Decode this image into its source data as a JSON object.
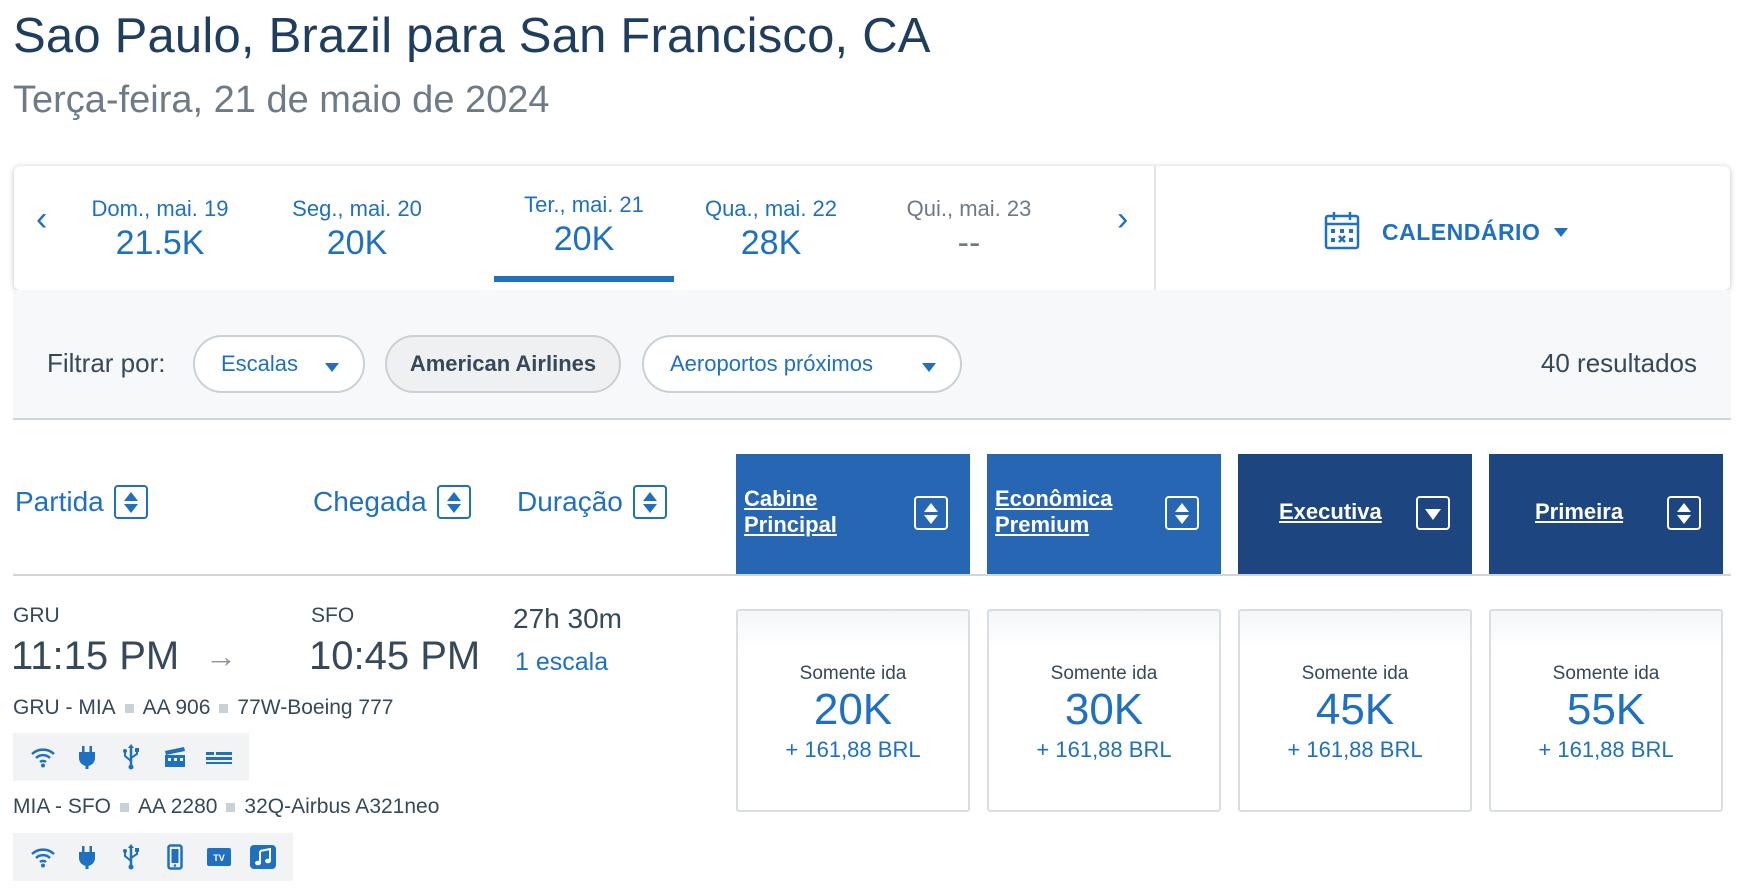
{
  "header": {
    "title": "Sao Paulo, Brazil para San Francisco, CA",
    "subtitle": "Terça-feira, 21 de maio de 2024"
  },
  "date_nav": {
    "prev_glyph": "‹",
    "next_glyph": "›",
    "dates": [
      {
        "label": "Dom., mai. 19",
        "price": "21.5K"
      },
      {
        "label": "Seg., mai. 20",
        "price": "20K"
      },
      {
        "label": "Ter., mai. 21",
        "price": "20K",
        "selected": true
      },
      {
        "label": "Qua., mai. 22",
        "price": "28K"
      },
      {
        "label": "Qui., mai. 23",
        "price": "--"
      }
    ],
    "calendar_label": "CALENDÁRIO"
  },
  "filters": {
    "label": "Filtrar por:",
    "stops": "Escalas",
    "airline": "American Airlines",
    "airports": "Aeroportos próximos",
    "results": "40 resultados"
  },
  "columns": {
    "departure": "Partida",
    "arrival": "Chegada",
    "duration": "Duração",
    "cabins": [
      {
        "label": "Cabine\nPrincipal",
        "icon": "sort-icon"
      },
      {
        "label": "Econômica\nPremium",
        "icon": "sort-icon"
      },
      {
        "label": "Executiva",
        "icon": "sort-desc-icon",
        "active": true
      },
      {
        "label": "Primeira",
        "icon": "sort-icon"
      }
    ]
  },
  "flight": {
    "origin": "GRU",
    "depart_time": "11:15 PM",
    "destination": "SFO",
    "arrive_time": "10:45 PM",
    "duration": "27h 30m",
    "stops": "1 escala",
    "segments": [
      {
        "route": "GRU - MIA",
        "flight_no": "AA 906",
        "aircraft": "77W-Boeing 777",
        "amenities": [
          "wifi-icon",
          "power-outlet-icon",
          "usb-icon",
          "entertainment-icon",
          "lie-flat-seat-icon"
        ]
      },
      {
        "route": "MIA - SFO",
        "flight_no": "AA 2280",
        "aircraft": "32Q-Airbus A321neo",
        "amenities": [
          "wifi-icon",
          "power-outlet-icon",
          "usb-icon",
          "device-entertainment-icon",
          "tv-icon",
          "music-icon"
        ]
      }
    ],
    "fares": [
      {
        "label": "Somente ida",
        "miles": "20K",
        "tax": "+ 161,88 BRL"
      },
      {
        "label": "Somente ida",
        "miles": "30K",
        "tax": "+ 161,88 BRL"
      },
      {
        "label": "Somente ida",
        "miles": "45K",
        "tax": "+ 161,88 BRL"
      },
      {
        "label": "Somente ida",
        "miles": "55K",
        "tax": "+ 161,88 BRL"
      }
    ]
  },
  "colors": {
    "link_blue": "#1f70c1",
    "cabin_header_blue": "#2766b3",
    "cabin_header_navy": "#1d4580",
    "title_navy": "#1f3e5f",
    "text_gray": "#36495a"
  }
}
